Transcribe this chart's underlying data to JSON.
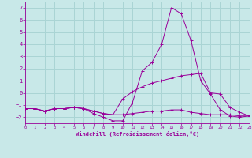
{
  "xlabel": "Windchill (Refroidissement éolien,°C)",
  "bg_color": "#c8e8e8",
  "grid_color": "#aad4d4",
  "line_color": "#990099",
  "xlim": [
    0,
    23
  ],
  "ylim": [
    -2.5,
    7.5
  ],
  "xticks": [
    0,
    1,
    2,
    3,
    4,
    5,
    6,
    7,
    8,
    9,
    10,
    11,
    12,
    13,
    14,
    15,
    16,
    17,
    18,
    19,
    20,
    21,
    22,
    23
  ],
  "yticks": [
    -2,
    -1,
    0,
    1,
    2,
    3,
    4,
    5,
    6,
    7
  ],
  "series": [
    {
      "x": [
        0,
        1,
        2,
        3,
        4,
        5,
        6,
        7,
        8,
        9,
        10,
        11,
        12,
        13,
        14,
        15,
        16,
        17,
        18,
        19,
        20,
        21,
        22,
        23
      ],
      "y": [
        -1.3,
        -1.3,
        -1.5,
        -1.3,
        -1.3,
        -1.2,
        -1.3,
        -1.7,
        -2.0,
        -2.3,
        -2.3,
        -0.8,
        1.8,
        2.5,
        4.0,
        7.0,
        6.5,
        4.3,
        1.0,
        -0.1,
        -1.4,
        -1.9,
        -2.0,
        -1.9
      ]
    },
    {
      "x": [
        0,
        1,
        2,
        3,
        4,
        5,
        6,
        7,
        8,
        9,
        10,
        11,
        12,
        13,
        14,
        15,
        16,
        17,
        18,
        19,
        20,
        21,
        22,
        23
      ],
      "y": [
        -1.3,
        -1.3,
        -1.5,
        -1.3,
        -1.3,
        -1.2,
        -1.3,
        -1.5,
        -1.7,
        -1.8,
        -0.5,
        0.1,
        0.5,
        0.8,
        1.0,
        1.2,
        1.4,
        1.5,
        1.6,
        0.0,
        -0.1,
        -1.2,
        -1.6,
        -1.9
      ]
    },
    {
      "x": [
        0,
        1,
        2,
        3,
        4,
        5,
        6,
        7,
        8,
        9,
        10,
        11,
        12,
        13,
        14,
        15,
        16,
        17,
        18,
        19,
        20,
        21,
        22,
        23
      ],
      "y": [
        -1.3,
        -1.3,
        -1.5,
        -1.3,
        -1.3,
        -1.2,
        -1.3,
        -1.5,
        -1.7,
        -1.8,
        -1.8,
        -1.7,
        -1.6,
        -1.5,
        -1.5,
        -1.4,
        -1.4,
        -1.6,
        -1.7,
        -1.8,
        -1.8,
        -1.8,
        -1.9,
        -1.9
      ]
    }
  ]
}
